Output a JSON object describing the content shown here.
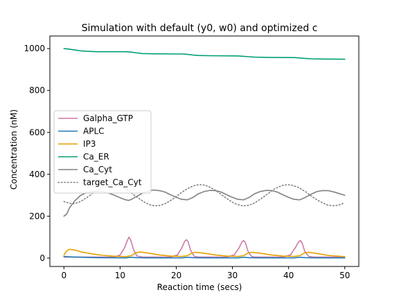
{
  "chart_data": {
    "type": "line",
    "title": "Simulation with default (y0, w0) and optimized c",
    "xlabel": "Reaction time (secs)",
    "ylabel": "Concentration (nM)",
    "xlim": [
      -2.5,
      52.5
    ],
    "ylim": [
      -40,
      1060
    ],
    "xticks": [
      0,
      10,
      20,
      30,
      40,
      50
    ],
    "yticks": [
      0,
      200,
      400,
      600,
      800,
      1000
    ],
    "grid": false,
    "legend_position": "center-left",
    "series": [
      {
        "name": "Galpha_GTP",
        "color": "#cc79a7",
        "style": "solid",
        "points": [
          [
            0,
            5
          ],
          [
            9,
            5
          ],
          [
            10,
            15
          ],
          [
            10.8,
            50
          ],
          [
            11.3,
            85
          ],
          [
            11.6,
            100
          ],
          [
            11.9,
            85
          ],
          [
            12.4,
            40
          ],
          [
            13,
            10
          ],
          [
            14,
            5
          ],
          [
            19,
            5
          ],
          [
            20.2,
            15
          ],
          [
            21,
            50
          ],
          [
            21.5,
            80
          ],
          [
            21.8,
            88
          ],
          [
            22.1,
            78
          ],
          [
            22.6,
            35
          ],
          [
            23.2,
            8
          ],
          [
            24,
            5
          ],
          [
            29,
            5
          ],
          [
            30.3,
            15
          ],
          [
            31.2,
            50
          ],
          [
            31.7,
            78
          ],
          [
            32,
            84
          ],
          [
            32.3,
            74
          ],
          [
            32.8,
            30
          ],
          [
            33.4,
            8
          ],
          [
            34,
            5
          ],
          [
            39,
            5
          ],
          [
            40.3,
            15
          ],
          [
            41.2,
            50
          ],
          [
            41.8,
            78
          ],
          [
            42.1,
            84
          ],
          [
            42.4,
            72
          ],
          [
            42.9,
            30
          ],
          [
            43.6,
            8
          ],
          [
            44.5,
            5
          ],
          [
            50,
            5
          ]
        ]
      },
      {
        "name": "APLC",
        "color": "#1f77b4",
        "style": "solid",
        "points": [
          [
            0,
            8
          ],
          [
            1,
            6
          ],
          [
            3,
            4
          ],
          [
            6,
            2
          ],
          [
            11,
            1
          ],
          [
            12,
            4
          ],
          [
            13,
            2
          ],
          [
            15,
            1
          ],
          [
            21,
            1
          ],
          [
            22,
            4
          ],
          [
            23,
            2
          ],
          [
            25,
            1
          ],
          [
            31,
            1
          ],
          [
            32,
            4
          ],
          [
            33,
            2
          ],
          [
            35,
            1
          ],
          [
            41,
            1
          ],
          [
            42,
            4
          ],
          [
            43,
            2
          ],
          [
            45,
            1
          ],
          [
            50,
            1
          ]
        ]
      },
      {
        "name": "IP3",
        "color": "#e69f00",
        "style": "solid",
        "points": [
          [
            0,
            15
          ],
          [
            0.5,
            35
          ],
          [
            1,
            42
          ],
          [
            2,
            38
          ],
          [
            3,
            30
          ],
          [
            5,
            20
          ],
          [
            7,
            13
          ],
          [
            9,
            9
          ],
          [
            11,
            7
          ],
          [
            12,
            12
          ],
          [
            12.8,
            25
          ],
          [
            13.5,
            29
          ],
          [
            15,
            24
          ],
          [
            17,
            15
          ],
          [
            19,
            10
          ],
          [
            21,
            8
          ],
          [
            22,
            12
          ],
          [
            22.8,
            24
          ],
          [
            23.5,
            28
          ],
          [
            25,
            23
          ],
          [
            27,
            15
          ],
          [
            29,
            10
          ],
          [
            31,
            8
          ],
          [
            32,
            12
          ],
          [
            32.8,
            24
          ],
          [
            33.5,
            28
          ],
          [
            35,
            23
          ],
          [
            37,
            15
          ],
          [
            39,
            10
          ],
          [
            41,
            8
          ],
          [
            42,
            12
          ],
          [
            42.8,
            24
          ],
          [
            43.5,
            28
          ],
          [
            45,
            22
          ],
          [
            47,
            13
          ],
          [
            50,
            7
          ]
        ]
      },
      {
        "name": "Ca_ER",
        "color": "#009e73",
        "style": "solid",
        "points": [
          [
            0,
            1000
          ],
          [
            1,
            997
          ],
          [
            2,
            993
          ],
          [
            3,
            989
          ],
          [
            4,
            987
          ],
          [
            6,
            985
          ],
          [
            9,
            985
          ],
          [
            11,
            985
          ],
          [
            12,
            983
          ],
          [
            13,
            979
          ],
          [
            14,
            976
          ],
          [
            16,
            975
          ],
          [
            20,
            974
          ],
          [
            21,
            974
          ],
          [
            22,
            972
          ],
          [
            23,
            969
          ],
          [
            24,
            967
          ],
          [
            26,
            966
          ],
          [
            31,
            965
          ],
          [
            32,
            963
          ],
          [
            33,
            961
          ],
          [
            34,
            959
          ],
          [
            36,
            958
          ],
          [
            41,
            957
          ],
          [
            42,
            955
          ],
          [
            43,
            953
          ],
          [
            44,
            951
          ],
          [
            46,
            950
          ],
          [
            50,
            949
          ]
        ]
      },
      {
        "name": "Ca_Cyt",
        "color": "#808080",
        "style": "solid",
        "points": [
          [
            0,
            200
          ],
          [
            0.5,
            210
          ],
          [
            1,
            240
          ],
          [
            2,
            275
          ],
          [
            3,
            300
          ],
          [
            4,
            312
          ],
          [
            5,
            316
          ],
          [
            6,
            318
          ],
          [
            7,
            316
          ],
          [
            8,
            310
          ],
          [
            9,
            300
          ],
          [
            10,
            288
          ],
          [
            11,
            278
          ],
          [
            11.5,
            275
          ],
          [
            12,
            280
          ],
          [
            13,
            295
          ],
          [
            14,
            310
          ],
          [
            15,
            320
          ],
          [
            16,
            325
          ],
          [
            17,
            322
          ],
          [
            18,
            315
          ],
          [
            19,
            302
          ],
          [
            20,
            290
          ],
          [
            21,
            280
          ],
          [
            22,
            278
          ],
          [
            23,
            290
          ],
          [
            24,
            308
          ],
          [
            25,
            318
          ],
          [
            26,
            323
          ],
          [
            27,
            322
          ],
          [
            28,
            315
          ],
          [
            29,
            302
          ],
          [
            30,
            290
          ],
          [
            31,
            280
          ],
          [
            32,
            278
          ],
          [
            33,
            290
          ],
          [
            34,
            308
          ],
          [
            35,
            318
          ],
          [
            36,
            323
          ],
          [
            37,
            322
          ],
          [
            38,
            315
          ],
          [
            39,
            302
          ],
          [
            40,
            290
          ],
          [
            41,
            280
          ],
          [
            42,
            278
          ],
          [
            43,
            290
          ],
          [
            44,
            305
          ],
          [
            45,
            317
          ],
          [
            46,
            322
          ],
          [
            47,
            322
          ],
          [
            48,
            316
          ],
          [
            49,
            308
          ],
          [
            50,
            300
          ]
        ]
      },
      {
        "name": "target_Ca_Cyt",
        "color": "#808080",
        "style": "dotted",
        "points": [
          [
            0,
            270
          ],
          [
            0.5,
            266
          ],
          [
            1,
            262
          ],
          [
            1.5,
            260
          ],
          [
            2,
            261
          ],
          [
            2.5,
            265
          ],
          [
            3,
            271
          ],
          [
            3.5,
            279
          ],
          [
            4,
            288
          ],
          [
            4.5,
            297
          ],
          [
            5,
            307
          ],
          [
            5.5,
            317
          ],
          [
            6,
            325
          ],
          [
            6.5,
            334
          ],
          [
            7,
            340
          ],
          [
            7.5,
            344
          ],
          [
            8,
            348
          ],
          [
            8.5,
            350
          ],
          [
            9,
            349
          ],
          [
            9.5,
            347
          ],
          [
            10,
            343
          ],
          [
            10.5,
            337
          ],
          [
            11,
            330
          ],
          [
            11.5,
            321
          ],
          [
            12,
            311
          ],
          [
            12.5,
            301
          ],
          [
            13,
            291
          ],
          [
            13.5,
            282
          ],
          [
            14,
            273
          ],
          [
            14.5,
            264
          ],
          [
            15,
            258
          ],
          [
            15.5,
            253
          ],
          [
            16,
            250
          ],
          [
            16.5,
            250
          ],
          [
            17,
            251
          ],
          [
            17.5,
            255
          ],
          [
            18,
            260
          ],
          [
            18.5,
            267
          ],
          [
            19,
            275
          ],
          [
            19.5,
            284
          ],
          [
            20,
            294
          ],
          [
            20.5,
            304
          ],
          [
            21,
            314
          ],
          [
            21.5,
            323
          ],
          [
            22,
            331
          ],
          [
            22.5,
            338
          ],
          [
            23,
            344
          ],
          [
            23.5,
            348
          ],
          [
            24,
            350
          ],
          [
            24.5,
            350
          ],
          [
            25,
            348
          ],
          [
            25.5,
            344
          ],
          [
            26,
            338
          ],
          [
            26.5,
            331
          ],
          [
            27,
            323
          ],
          [
            27.5,
            314
          ],
          [
            28,
            304
          ],
          [
            28.5,
            294
          ],
          [
            29,
            284
          ],
          [
            29.5,
            275
          ],
          [
            30,
            267
          ],
          [
            30.5,
            260
          ],
          [
            31,
            255
          ],
          [
            31.5,
            251
          ],
          [
            32,
            250
          ],
          [
            32.5,
            250
          ],
          [
            33,
            253
          ],
          [
            33.5,
            258
          ],
          [
            34,
            264
          ],
          [
            34.5,
            273
          ],
          [
            35,
            282
          ],
          [
            35.5,
            291
          ],
          [
            36,
            301
          ],
          [
            36.5,
            311
          ],
          [
            37,
            321
          ],
          [
            37.5,
            330
          ],
          [
            38,
            337
          ],
          [
            38.5,
            343
          ],
          [
            39,
            347
          ],
          [
            39.5,
            349
          ],
          [
            40,
            350
          ],
          [
            40.5,
            348
          ],
          [
            41,
            344
          ],
          [
            41.5,
            340
          ],
          [
            42,
            334
          ],
          [
            42.5,
            325
          ],
          [
            43,
            317
          ],
          [
            43.5,
            307
          ],
          [
            44,
            297
          ],
          [
            44.5,
            288
          ],
          [
            45,
            279
          ],
          [
            45.5,
            271
          ],
          [
            46,
            265
          ],
          [
            46.5,
            258
          ],
          [
            47,
            253
          ],
          [
            47.5,
            251
          ],
          [
            48,
            250
          ],
          [
            48.5,
            251
          ],
          [
            49,
            254
          ],
          [
            49.5,
            259
          ],
          [
            50,
            265
          ]
        ]
      }
    ]
  }
}
